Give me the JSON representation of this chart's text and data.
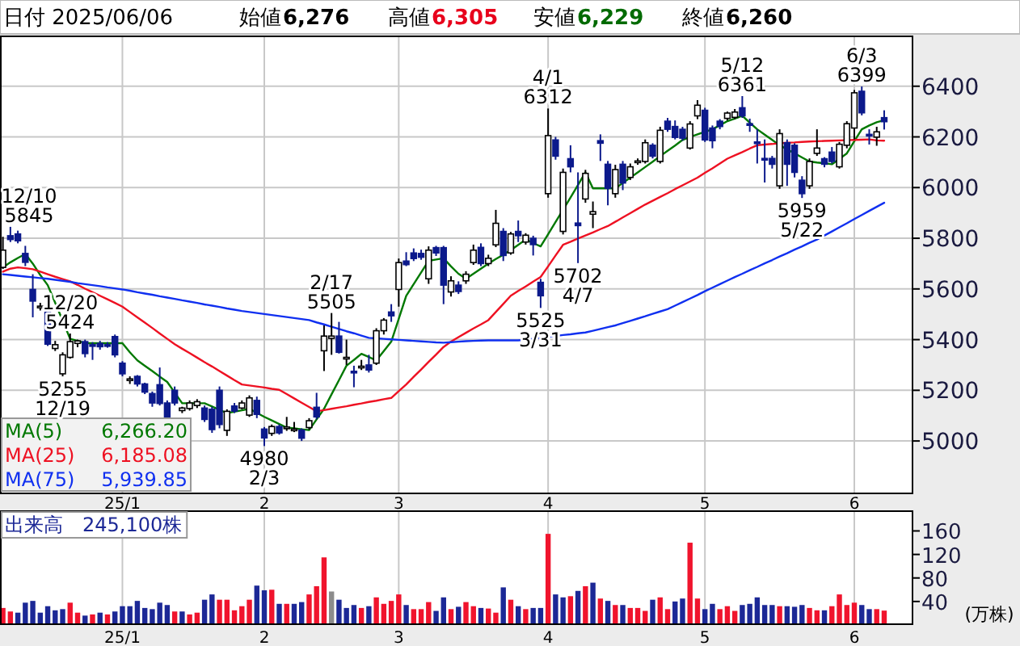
{
  "chart_data": [
    {
      "type": "candlestick",
      "grid": true,
      "legend": "bottom left",
      "ylim": [
        4790,
        6600
      ],
      "yticks": [
        5000,
        5200,
        5400,
        5600,
        5800,
        6000,
        6200,
        6400
      ],
      "categories": [
        null,
        null,
        null,
        null,
        null,
        null,
        null,
        null,
        null,
        null,
        null,
        null,
        null,
        null,
        null,
        null,
        "25/1",
        null,
        null,
        null,
        null,
        null,
        null,
        null,
        null,
        null,
        null,
        null,
        null,
        null,
        null,
        null,
        null,
        null,
        null,
        "2",
        null,
        null,
        null,
        null,
        null,
        null,
        null,
        null,
        null,
        null,
        null,
        null,
        null,
        null,
        null,
        null,
        null,
        "3",
        null,
        null,
        null,
        null,
        null,
        null,
        null,
        null,
        null,
        null,
        null,
        null,
        null,
        null,
        null,
        null,
        null,
        null,
        null,
        "4",
        null,
        null,
        null,
        null,
        null,
        null,
        null,
        null,
        null,
        null,
        null,
        null,
        null,
        null,
        null,
        null,
        null,
        null,
        null,
        null,
        "5",
        null,
        null,
        null,
        null,
        null,
        null,
        null,
        null,
        null,
        null,
        null,
        null,
        null,
        null,
        null,
        null,
        null,
        null,
        null,
        "6",
        null,
        null,
        null,
        null
      ],
      "ohlc": [
        [
          5685,
          5806,
          5679,
          5753
        ],
        [
          5810,
          5845,
          5785,
          5795
        ],
        [
          5817,
          5830,
          5780,
          5790
        ],
        [
          5740,
          5770,
          5690,
          5705
        ],
        [
          5598,
          5658,
          5488,
          5552
        ],
        [
          5528,
          5545,
          5515,
          5532
        ],
        [
          5509,
          5520,
          5375,
          5382
        ],
        [
          5365,
          5395,
          5355,
          5380
        ],
        [
          5265,
          5350,
          5255,
          5340
        ],
        [
          5330,
          5424,
          5325,
          5392
        ],
        [
          5385,
          5400,
          5370,
          5395
        ],
        [
          5392,
          5400,
          5330,
          5345
        ],
        [
          5380,
          5390,
          5320,
          5375
        ],
        [
          5385,
          5395,
          5360,
          5372
        ],
        [
          5380,
          5390,
          5368,
          5378
        ],
        [
          5412,
          5420,
          5330,
          5340
        ],
        [
          5307,
          5315,
          5255,
          5265
        ],
        [
          5240,
          5255,
          5225,
          5245
        ],
        [
          5255,
          5260,
          5215,
          5225
        ],
        [
          5225,
          5230,
          5185,
          5193
        ],
        [
          5187,
          5195,
          5135,
          5150
        ],
        [
          5222,
          5290,
          5140,
          5148
        ],
        [
          5150,
          5160,
          5085,
          5095
        ],
        [
          5200,
          5215,
          5140,
          5150
        ],
        [
          5120,
          5135,
          5110,
          5130
        ],
        [
          5128,
          5160,
          5120,
          5150
        ],
        [
          5140,
          5165,
          5130,
          5155
        ],
        [
          5130,
          5140,
          5075,
          5085
        ],
        [
          5125,
          5135,
          5032,
          5045
        ],
        [
          5200,
          5215,
          5050,
          5065
        ],
        [
          5042,
          5125,
          5020,
          5117
        ],
        [
          5138,
          5150,
          5110,
          5118
        ],
        [
          5130,
          5160,
          5125,
          5150
        ],
        [
          5102,
          5180,
          5095,
          5170
        ],
        [
          5160,
          5175,
          5090,
          5105
        ],
        [
          5047,
          5055,
          4980,
          5012
        ],
        [
          5030,
          5065,
          5020,
          5057
        ],
        [
          5057,
          5065,
          5025,
          5032
        ],
        [
          5050,
          5095,
          5040,
          5055
        ],
        [
          5045,
          5075,
          5035,
          5047
        ],
        [
          5043,
          5050,
          5000,
          5011
        ],
        [
          5053,
          5090,
          5045,
          5080
        ],
        [
          5133,
          5190,
          5085,
          5095
        ],
        [
          5356,
          5456,
          5276,
          5414
        ],
        [
          5405,
          5505,
          5340,
          5414
        ],
        [
          5414,
          5470,
          5345,
          5350
        ],
        [
          5325,
          5400,
          5300,
          5330
        ],
        [
          5275,
          5297,
          5212,
          5270
        ],
        [
          5290,
          5320,
          5280,
          5295
        ],
        [
          5300,
          5340,
          5270,
          5280
        ],
        [
          5307,
          5445,
          5300,
          5435
        ],
        [
          5435,
          5485,
          5420,
          5477
        ],
        [
          5509,
          5540,
          5470,
          5494
        ],
        [
          5598,
          5720,
          5530,
          5704
        ],
        [
          5710,
          5745,
          5690,
          5696
        ],
        [
          5742,
          5760,
          5710,
          5720
        ],
        [
          5740,
          5755,
          5715,
          5725
        ],
        [
          5640,
          5768,
          5620,
          5753
        ],
        [
          5763,
          5770,
          5730,
          5742
        ],
        [
          5763,
          5770,
          5540,
          5615
        ],
        [
          5588,
          5650,
          5570,
          5632
        ],
        [
          5615,
          5630,
          5580,
          5590
        ],
        [
          5632,
          5670,
          5620,
          5658
        ],
        [
          5704,
          5775,
          5695,
          5753
        ],
        [
          5764,
          5780,
          5690,
          5700
        ],
        [
          5700,
          5735,
          5690,
          5721
        ],
        [
          5774,
          5912,
          5765,
          5859
        ],
        [
          5827,
          5840,
          5710,
          5732
        ],
        [
          5742,
          5825,
          5735,
          5817
        ],
        [
          5827,
          5870,
          5785,
          5810
        ],
        [
          5785,
          5820,
          5775,
          5812
        ],
        [
          5800,
          5810,
          5732,
          5775
        ],
        [
          5626,
          5640,
          5525,
          5573
        ],
        [
          5976,
          6312,
          5960,
          6205
        ],
        [
          6188,
          6200,
          6110,
          6124
        ],
        [
          5827,
          6075,
          5815,
          6060
        ],
        [
          6114,
          6167,
          6060,
          6082
        ],
        [
          5860,
          6060,
          5702,
          5850
        ],
        [
          5955,
          6070,
          5940,
          6056
        ],
        [
          5895,
          5945,
          5840,
          5905
        ],
        [
          6185,
          6210,
          6105,
          6175
        ],
        [
          6092,
          6105,
          5930,
          5997
        ],
        [
          5976,
          6090,
          5960,
          6071
        ],
        [
          6092,
          6105,
          5990,
          6018
        ],
        [
          6040,
          6095,
          6030,
          6082
        ],
        [
          6100,
          6115,
          6090,
          6105
        ],
        [
          6103,
          6190,
          6095,
          6177
        ],
        [
          6167,
          6175,
          6115,
          6124
        ],
        [
          6103,
          6240,
          6095,
          6226
        ],
        [
          6262,
          6275,
          6220,
          6230
        ],
        [
          6241,
          6265,
          6190,
          6198
        ],
        [
          6230,
          6240,
          6185,
          6195
        ],
        [
          6156,
          6262,
          6150,
          6251
        ],
        [
          6283,
          6345,
          6270,
          6325
        ],
        [
          6305,
          6315,
          6180,
          6188
        ],
        [
          6235,
          6245,
          6155,
          6185
        ],
        [
          6262,
          6270,
          6230,
          6241
        ],
        [
          6273,
          6300,
          6265,
          6294
        ],
        [
          6277,
          6310,
          6270,
          6298
        ],
        [
          6315,
          6361,
          6275,
          6283
        ],
        [
          6252,
          6272,
          6220,
          6250
        ],
        [
          6180,
          6230,
          6095,
          6177
        ],
        [
          6115,
          6190,
          6020,
          6110
        ],
        [
          6115,
          6125,
          6075,
          6092
        ],
        [
          6007,
          6230,
          5995,
          6213
        ],
        [
          6177,
          6190,
          6007,
          6092
        ],
        [
          6167,
          6175,
          6040,
          6060
        ],
        [
          6029,
          6045,
          5959,
          5976
        ],
        [
          6007,
          6115,
          5995,
          6103
        ],
        [
          6135,
          6230,
          6125,
          6156
        ],
        [
          6114,
          6120,
          6080,
          6092
        ],
        [
          6140,
          6160,
          6095,
          6103
        ],
        [
          6082,
          6180,
          6075,
          6171
        ],
        [
          6167,
          6262,
          6155,
          6252
        ],
        [
          6235,
          6385,
          6190,
          6374
        ],
        [
          6380,
          6399,
          6285,
          6295
        ],
        [
          6210,
          6230,
          6170,
          6205
        ],
        [
          6199,
          6240,
          6165,
          6220
        ],
        [
          6276,
          6305,
          6229,
          6260
        ]
      ],
      "colors": [
        "#ffffff",
        "#0c1a8c",
        "#0c1a8c",
        "#0c1a8c",
        "#0c1a8c",
        "#ffffff",
        "#0c1a8c",
        "#ffffff",
        "#ffffff",
        "#ffffff",
        "#ffffff",
        "#0c1a8c",
        "#0c1a8c",
        "#0c1a8c",
        "#0c1a8c",
        "#0c1a8c",
        "#0c1a8c",
        "#ffffff",
        "#0c1a8c",
        "#0c1a8c",
        "#0c1a8c",
        "#0c1a8c",
        "#0c1a8c",
        "#0c1a8c",
        "#ffffff",
        "#ffffff",
        "#ffffff",
        "#0c1a8c",
        "#0c1a8c",
        "#0c1a8c",
        "#ffffff",
        "#0c1a8c",
        "#ffffff",
        "#ffffff",
        "#0c1a8c",
        "#0c1a8c",
        "#ffffff",
        "#0c1a8c",
        "#ffffff",
        "#ffffff",
        "#0c1a8c",
        "#ffffff",
        "#0c1a8c",
        "#ffffff",
        "#ffffff",
        "#0c1a8c",
        "#ffffff",
        "#0c1a8c",
        "#ffffff",
        "#0c1a8c",
        "#ffffff",
        "#ffffff",
        "#0c1a8c",
        "#ffffff",
        "#0c1a8c",
        "#0c1a8c",
        "#0c1a8c",
        "#ffffff",
        "#0c1a8c",
        "#0c1a8c",
        "#ffffff",
        "#0c1a8c",
        "#ffffff",
        "#ffffff",
        "#0c1a8c",
        "#ffffff",
        "#ffffff",
        "#0c1a8c",
        "#ffffff",
        "#0c1a8c",
        "#ffffff",
        "#0c1a8c",
        "#0c1a8c",
        "#ffffff",
        "#0c1a8c",
        "#ffffff",
        "#0c1a8c",
        "#0c1a8c",
        "#ffffff",
        "#ffffff",
        "#0c1a8c",
        "#0c1a8c",
        "#ffffff",
        "#0c1a8c",
        "#ffffff",
        "#ffffff",
        "#ffffff",
        "#0c1a8c",
        "#ffffff",
        "#0c1a8c",
        "#0c1a8c",
        "#0c1a8c",
        "#ffffff",
        "#ffffff",
        "#0c1a8c",
        "#0c1a8c",
        "#0c1a8c",
        "#ffffff",
        "#ffffff",
        "#0c1a8c",
        "#0c1a8c",
        "#0c1a8c",
        "#0c1a8c",
        "#0c1a8c",
        "#ffffff",
        "#0c1a8c",
        "#0c1a8c",
        "#0c1a8c",
        "#ffffff",
        "#ffffff",
        "#0c1a8c",
        "#0c1a8c",
        "#ffffff",
        "#ffffff",
        "#ffffff",
        "#0c1a8c",
        "#0c1a8c",
        "#ffffff",
        "#0c1a8c"
      ],
      "series": [
        {
          "type": "line",
          "name": "MA(5)",
          "color": "#007800",
          "values": [
            5685,
            5705,
            5722,
            5738,
            5700,
            5655,
            5615,
            5545,
            5475,
            5403,
            5395,
            5386,
            5386,
            5386,
            5386,
            5386,
            5386,
            5350,
            5318,
            5297,
            5276,
            5254,
            5233,
            5191,
            5149,
            5149,
            5149,
            5149,
            5136,
            5123,
            5110,
            5116,
            5121,
            5127,
            5111,
            5095,
            5081,
            5067,
            5053,
            5050,
            5046,
            5043,
            5085,
            5127,
            5184,
            5240,
            5297,
            5320,
            5344,
            5331,
            5318,
            5355,
            5392,
            5482,
            5573,
            5619,
            5665,
            5711,
            5716,
            5721,
            5689,
            5660,
            5640,
            5660,
            5680,
            5700,
            5718,
            5735,
            5753,
            5774,
            5795,
            5781,
            5768,
            5816,
            5864,
            5912,
            5961,
            6010,
            6060,
            5997,
            5997,
            5997,
            5997,
            6018,
            6039,
            6060,
            6081,
            6102,
            6124,
            6145,
            6166,
            6188,
            6200,
            6210,
            6220,
            6230,
            6246,
            6262,
            6272,
            6283,
            6256,
            6230,
            6209,
            6188,
            6167,
            6151,
            6135,
            6119,
            6103,
            6099,
            6096,
            6092,
            6113,
            6135,
            6183,
            6230,
            6245,
            6258,
            6266
          ]
        },
        {
          "type": "line",
          "name": "MA(25)",
          "color": "#ee1122",
          "values": [
            5668,
            5680,
            5685,
            5682,
            5678,
            5668,
            5658,
            5648,
            5639,
            5630,
            5616,
            5601,
            5587,
            5573,
            5559,
            5545,
            5530,
            5509,
            5488,
            5467,
            5446,
            5424,
            5403,
            5382,
            5364,
            5347,
            5329,
            5311,
            5294,
            5276,
            5258,
            5240,
            5223,
            5219,
            5215,
            5211,
            5206,
            5202,
            5185,
            5168,
            5151,
            5134,
            5117,
            5122,
            5127,
            5132,
            5137,
            5143,
            5148,
            5154,
            5159,
            5165,
            5170,
            5197,
            5223,
            5253,
            5282,
            5312,
            5341,
            5371,
            5392,
            5410,
            5427,
            5444,
            5460,
            5477,
            5509,
            5541,
            5573,
            5592,
            5610,
            5629,
            5647,
            5689,
            5732,
            5774,
            5786,
            5799,
            5811,
            5823,
            5836,
            5848,
            5865,
            5882,
            5899,
            5916,
            5933,
            5948,
            5963,
            5978,
            5994,
            6009,
            6024,
            6039,
            6058,
            6076,
            6095,
            6114,
            6127,
            6140,
            6154,
            6167,
            6170,
            6172,
            6175,
            6177,
            6178,
            6180,
            6182,
            6183,
            6184,
            6185,
            6186,
            6187,
            6188,
            6189,
            6190,
            6186,
            6185
          ]
        },
        {
          "type": "line",
          "name": "MA(75)",
          "color": "#1030f0",
          "values": [
            5658,
            5655,
            5652,
            5649,
            5646,
            5643,
            5640,
            5636,
            5632,
            5628,
            5623,
            5619,
            5615,
            5611,
            5606,
            5602,
            5598,
            5593,
            5587,
            5582,
            5577,
            5571,
            5566,
            5561,
            5555,
            5550,
            5545,
            5539,
            5534,
            5529,
            5523,
            5518,
            5513,
            5509,
            5505,
            5501,
            5497,
            5493,
            5489,
            5485,
            5481,
            5477,
            5468,
            5460,
            5451,
            5442,
            5433,
            5425,
            5416,
            5407,
            5405,
            5403,
            5401,
            5399,
            5397,
            5395,
            5393,
            5391,
            5389,
            5388,
            5390,
            5392,
            5394,
            5395,
            5396,
            5397,
            5397,
            5397,
            5397,
            5397,
            5400,
            5404,
            5407,
            5411,
            5414,
            5418,
            5421,
            5425,
            5428,
            5435,
            5442,
            5449,
            5456,
            5465,
            5474,
            5483,
            5492,
            5502,
            5511,
            5520,
            5534,
            5548,
            5562,
            5576,
            5591,
            5605,
            5619,
            5633,
            5647,
            5660,
            5674,
            5687,
            5701,
            5714,
            5728,
            5741,
            5755,
            5768,
            5782,
            5795,
            5811,
            5827,
            5843,
            5859,
            5876,
            5892,
            5908,
            5924,
            5940
          ]
        }
      ],
      "annotations": [
        "日付 2025/06/06",
        "始値",
        "6,276",
        "高値",
        "6,305",
        "安値",
        "6,229",
        "終値",
        "6,260",
        "6,266.20",
        "6,185.08",
        "5,939.85",
        "12/10\n5845",
        "12/20\n5424",
        "5255\n12/19",
        "4980\n2/3",
        "2/17\n5505",
        "5525\n3/31",
        "4/1\n6312",
        "5702\n4/7",
        "5/12\n6361",
        "5959\n5/22",
        "6/3\n6399"
      ]
    },
    {
      "type": "bar",
      "grid": "x",
      "ylabel": "(万株)",
      "ylim": [
        0,
        195
      ],
      "yticks": [
        40,
        80,
        120,
        160
      ],
      "categories": [
        null,
        null,
        null,
        null,
        null,
        null,
        null,
        null,
        null,
        null,
        null,
        null,
        null,
        null,
        null,
        null,
        "25/1",
        null,
        null,
        null,
        null,
        null,
        null,
        null,
        null,
        null,
        null,
        null,
        null,
        null,
        null,
        null,
        null,
        null,
        null,
        "2",
        null,
        null,
        null,
        null,
        null,
        null,
        null,
        null,
        null,
        null,
        null,
        null,
        null,
        null,
        null,
        null,
        null,
        "3",
        null,
        null,
        null,
        null,
        null,
        null,
        null,
        null,
        null,
        null,
        null,
        null,
        null,
        null,
        null,
        null,
        null,
        null,
        null,
        "4",
        null,
        null,
        null,
        null,
        null,
        null,
        null,
        null,
        null,
        null,
        null,
        null,
        null,
        null,
        null,
        null,
        null,
        null,
        null,
        null,
        "5",
        null,
        null,
        null,
        null,
        null,
        null,
        null,
        null,
        null,
        null,
        null,
        null,
        null,
        null,
        null,
        null,
        null,
        null,
        null,
        "6",
        null,
        null,
        null,
        null
      ],
      "values": [
        29,
        23,
        21,
        38,
        41,
        21,
        32,
        25,
        27,
        38,
        21,
        16,
        18,
        21,
        18,
        23,
        32,
        32,
        41,
        29,
        27,
        38,
        34,
        23,
        23,
        18,
        21,
        43,
        52,
        43,
        43,
        25,
        32,
        43,
        67,
        59,
        60,
        36,
        36,
        36,
        39,
        52,
        66,
        115,
        57,
        43,
        29,
        34,
        29,
        32,
        47,
        36,
        41,
        52,
        34,
        27,
        27,
        39,
        24,
        47,
        27,
        31,
        39,
        32,
        29,
        28,
        21,
        64,
        43,
        32,
        27,
        29,
        29,
        155,
        52,
        47,
        49,
        58,
        66,
        72,
        45,
        41,
        34,
        34,
        29,
        29,
        24,
        43,
        47,
        27,
        40,
        45,
        140,
        45,
        27,
        36,
        27,
        32,
        24,
        34,
        36,
        47,
        34,
        34,
        32,
        32,
        31,
        34,
        29,
        25,
        25,
        32,
        52,
        34,
        38,
        34,
        27,
        27,
        24.51
      ],
      "colors": [
        "#f0142d",
        "#f0142d",
        "#1c2896",
        "#1c2896",
        "#1c2896",
        "#1c2896",
        "#1c2896",
        "#1c2896",
        "#1c2896",
        "#f0142d",
        "#f0142d",
        "#1c2896",
        "#f0142d",
        "#1c2896",
        "#f0142d",
        "#1c2896",
        "#1c2896",
        "#1c2896",
        "#1c2896",
        "#1c2896",
        "#1c2896",
        "#1c2896",
        "#1c2896",
        "#f0142d",
        "#1c2896",
        "#f0142d",
        "#f0142d",
        "#1c2896",
        "#1c2896",
        "#f0142d",
        "#f0142d",
        "#f0142d",
        "#f0142d",
        "#f0142d",
        "#1c2896",
        "#1c2896",
        "#f0142d",
        "#1c2896",
        "#f0142d",
        "#1c2896",
        "#1c2896",
        "#f0142d",
        "#f0142d",
        "#f0142d",
        "#8c8c8c",
        "#1c2896",
        "#1c2896",
        "#1c2896",
        "#f0142d",
        "#1c2896",
        "#f0142d",
        "#f0142d",
        "#f0142d",
        "#f0142d",
        "#1c2896",
        "#f0142d",
        "#f0142d",
        "#f0142d",
        "#1c2896",
        "#1c2896",
        "#f0142d",
        "#1c2896",
        "#f0142d",
        "#f0142d",
        "#1c2896",
        "#f0142d",
        "#f0142d",
        "#1c2896",
        "#f0142d",
        "#1c2896",
        "#f0142d",
        "#1c2896",
        "#1c2896",
        "#f0142d",
        "#1c2896",
        "#1c2896",
        "#f0142d",
        "#1c2896",
        "#f0142d",
        "#1c2896",
        "#f0142d",
        "#1c2896",
        "#f0142d",
        "#1c2896",
        "#f0142d",
        "#f0142d",
        "#f0142d",
        "#1c2896",
        "#f0142d",
        "#f0142d",
        "#1c2896",
        "#1c2896",
        "#f0142d",
        "#f0142d",
        "#1c2896",
        "#1c2896",
        "#f0142d",
        "#f0142d",
        "#f0142d",
        "#1c2896",
        "#1c2896",
        "#1c2896",
        "#1c2896",
        "#1c2896",
        "#f0142d",
        "#1c2896",
        "#1c2896",
        "#1c2896",
        "#f0142d",
        "#f0142d",
        "#1c2896",
        "#f0142d",
        "#f0142d",
        "#f0142d",
        "#f0142d",
        "#1c2896",
        "#1c2896",
        "#f0142d",
        "#f0142d"
      ],
      "annotations": [
        "出来高　245,100株"
      ]
    }
  ]
}
